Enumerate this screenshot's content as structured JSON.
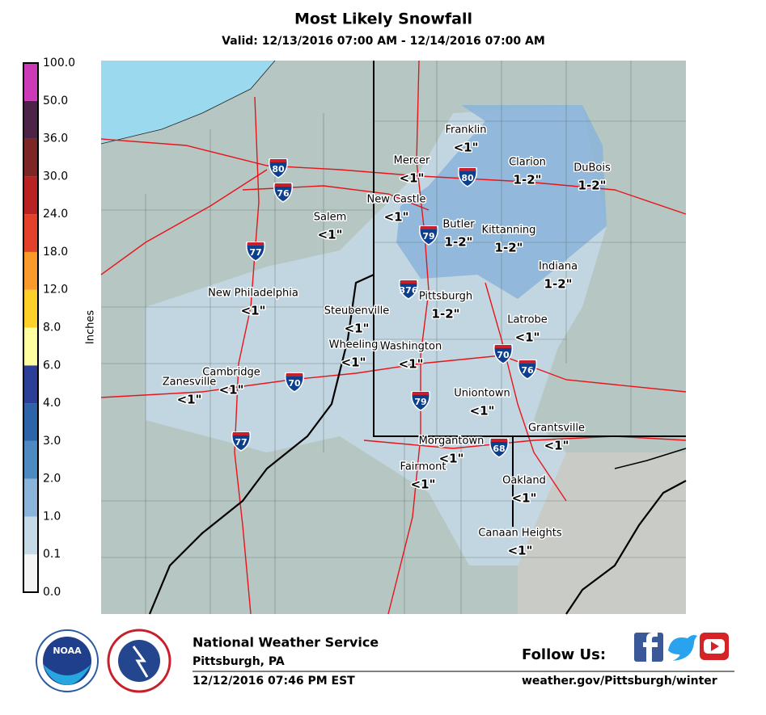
{
  "header": {
    "title": "Most Likely Snowfall",
    "subtitle": "Valid: 12/13/2016 07:00 AM - 12/14/2016 07:00 AM"
  },
  "legend": {
    "axis_label": "Inches",
    "levels": [
      "0.0",
      "0.1",
      "1.0",
      "2.0",
      "3.0",
      "4.0",
      "6.0",
      "8.0",
      "12.0",
      "18.0",
      "24.0",
      "30.0",
      "36.0",
      "50.0",
      "100.0"
    ],
    "colors": [
      "#f5f5f5",
      "#c6d9e6",
      "#8ab4d9",
      "#4e8ac2",
      "#2d64a7",
      "#2b3f98",
      "#ffffa0",
      "#ffd02a",
      "#f99a2a",
      "#e4412a",
      "#b82222",
      "#7c2626",
      "#4c2448",
      "#cc3ab8"
    ]
  },
  "map": {
    "cities": [
      {
        "name": "Franklin",
        "amount": "<1\""
      },
      {
        "name": "Mercer",
        "amount": "<1\""
      },
      {
        "name": "Clarion",
        "amount": "1-2\""
      },
      {
        "name": "DuBois",
        "amount": "1-2\""
      },
      {
        "name": "New Castle",
        "amount": "<1\""
      },
      {
        "name": "Salem",
        "amount": "<1\""
      },
      {
        "name": "Butler",
        "amount": "1-2\""
      },
      {
        "name": "Kittanning",
        "amount": "1-2\""
      },
      {
        "name": "Indiana",
        "amount": "1-2\""
      },
      {
        "name": "New Philadelphia",
        "amount": "<1\""
      },
      {
        "name": "Steubenville",
        "amount": "<1\""
      },
      {
        "name": "Pittsburgh",
        "amount": "1-2\""
      },
      {
        "name": "Latrobe",
        "amount": "<1\""
      },
      {
        "name": "Wheeling",
        "amount": "<1\""
      },
      {
        "name": "Washington",
        "amount": "<1\""
      },
      {
        "name": "Cambridge",
        "amount": "<1\""
      },
      {
        "name": "Zanesville",
        "amount": "<1\""
      },
      {
        "name": "Uniontown",
        "amount": "<1\""
      },
      {
        "name": "Grantsville",
        "amount": "<1\""
      },
      {
        "name": "Morgantown",
        "amount": "<1\""
      },
      {
        "name": "Fairmont",
        "amount": "<1\""
      },
      {
        "name": "Oakland",
        "amount": "<1\""
      },
      {
        "name": "Canaan Heights",
        "amount": "<1\""
      }
    ],
    "interstates": [
      "80",
      "76",
      "77",
      "376",
      "79",
      "80",
      "70",
      "76",
      "70",
      "79",
      "77",
      "68"
    ]
  },
  "footer": {
    "agency": "National Weather Service",
    "office": "Pittsburgh, PA",
    "issued": "12/12/2016 07:46 PM EST",
    "follow": "Follow Us:",
    "url": "weather.gov/Pittsburgh/winter",
    "logo": "NOAA"
  }
}
